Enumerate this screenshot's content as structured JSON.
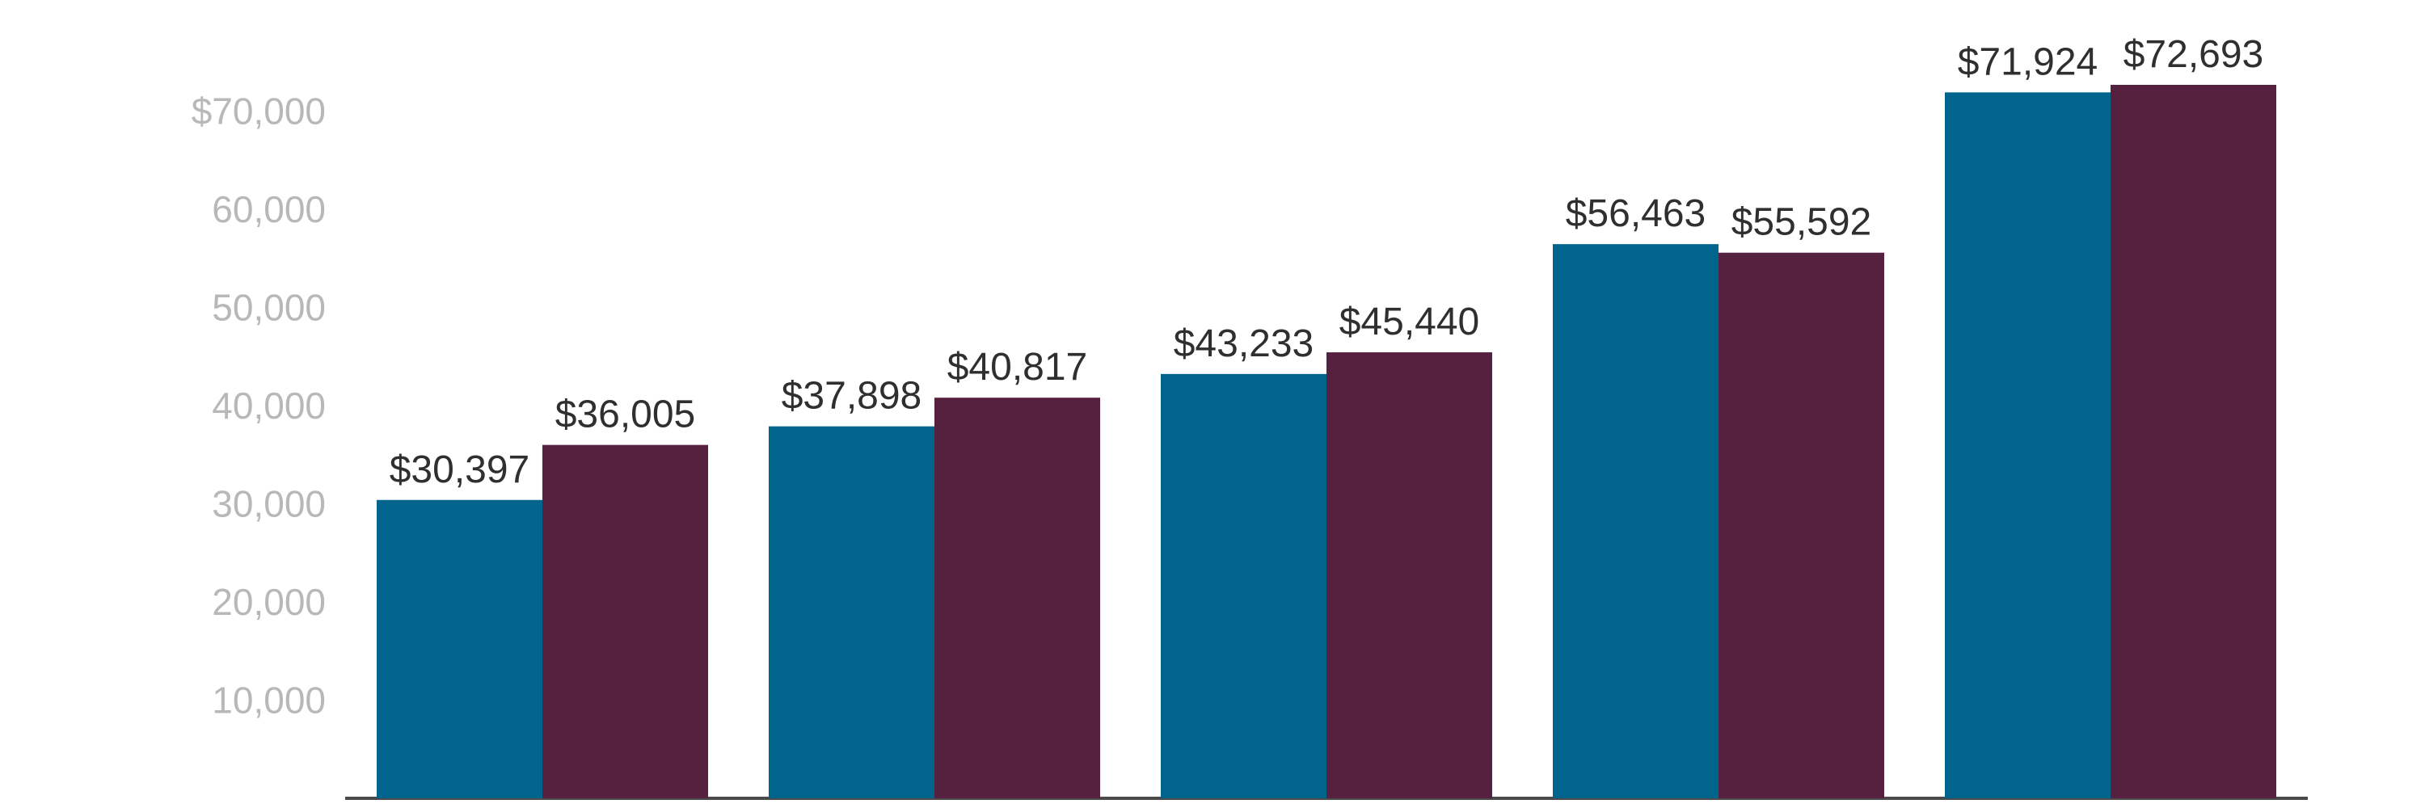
{
  "chart_data": {
    "type": "bar",
    "title": "",
    "xlabel": "",
    "ylabel": "",
    "categories": [
      "",
      "",
      "",
      "",
      ""
    ],
    "ylim": [
      0,
      72693
    ],
    "grid": false,
    "legend": "none",
    "series": [
      {
        "name": "Series 1",
        "color": "#00648c",
        "values": [
          30397,
          37898,
          43233,
          56463,
          71924
        ],
        "labels": [
          "$30,397",
          "$37,898",
          "$43,233",
          "$56,463",
          "$71,924"
        ]
      },
      {
        "name": "Series 2",
        "color": "#56213f",
        "values": [
          36005,
          40817,
          45440,
          55592,
          72693
        ],
        "labels": [
          "$36,005",
          "$40,817",
          "$45,440",
          "$55,592",
          "$72,693"
        ]
      }
    ],
    "y_ticks": [
      {
        "value": 10000,
        "label": "10,000"
      },
      {
        "value": 20000,
        "label": "20,000"
      },
      {
        "value": 30000,
        "label": "30,000"
      },
      {
        "value": 40000,
        "label": "40,000"
      },
      {
        "value": 50000,
        "label": "50,000"
      },
      {
        "value": 60000,
        "label": "60,000"
      },
      {
        "value": 70000,
        "label": "$70,000"
      }
    ],
    "axis_color": "#4a4a4a"
  }
}
